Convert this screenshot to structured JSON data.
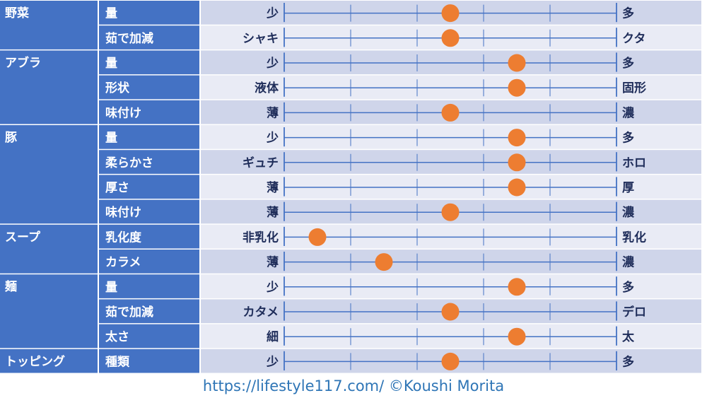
{
  "chart_data": {
    "type": "scatter",
    "scale_steps": 5,
    "groups": [
      {
        "name": "野菜",
        "rows": [
          {
            "attr": "量",
            "left": "少",
            "right": "多",
            "value": 2.5
          },
          {
            "attr": "茹で加減",
            "left": "シャキ",
            "right": "クタ",
            "value": 2.5
          }
        ]
      },
      {
        "name": "アブラ",
        "rows": [
          {
            "attr": "量",
            "left": "少",
            "right": "多",
            "value": 3.5
          },
          {
            "attr": "形状",
            "left": "液体",
            "right": "固形",
            "value": 3.5
          },
          {
            "attr": "味付け",
            "left": "薄",
            "right": "濃",
            "value": 2.5
          }
        ]
      },
      {
        "name": "豚",
        "rows": [
          {
            "attr": "量",
            "left": "少",
            "right": "多",
            "value": 3.5
          },
          {
            "attr": "柔らかさ",
            "left": "ギュチ",
            "right": "ホロ",
            "value": 3.5
          },
          {
            "attr": "厚さ",
            "left": "薄",
            "right": "厚",
            "value": 3.5
          },
          {
            "attr": "味付け",
            "left": "薄",
            "right": "濃",
            "value": 2.5
          }
        ]
      },
      {
        "name": "スープ",
        "rows": [
          {
            "attr": "乳化度",
            "left": "非乳化",
            "right": "乳化",
            "value": 0.5
          },
          {
            "attr": "カラメ",
            "left": "薄",
            "right": "濃",
            "value": 1.5
          }
        ]
      },
      {
        "name": "麺",
        "rows": [
          {
            "attr": "量",
            "left": "少",
            "right": "多",
            "value": 3.5
          },
          {
            "attr": "茹で加減",
            "left": "カタメ",
            "right": "デロ",
            "value": 2.5
          },
          {
            "attr": "太さ",
            "left": "細",
            "right": "太",
            "value": 3.5
          }
        ]
      },
      {
        "name": "トッピング",
        "rows": [
          {
            "attr": "種類",
            "left": "少",
            "right": "多",
            "value": 2.5
          }
        ]
      }
    ]
  },
  "colors": {
    "category_bg": "#4472c4",
    "row_band": "#cfd5ea",
    "row_alt": "#e9ebf5",
    "line": "#4472c4",
    "marker": "#ed7d31",
    "label_text": "#1f2d5a"
  },
  "footer": "https://lifestyle117.com/  ©Koushi Morita"
}
